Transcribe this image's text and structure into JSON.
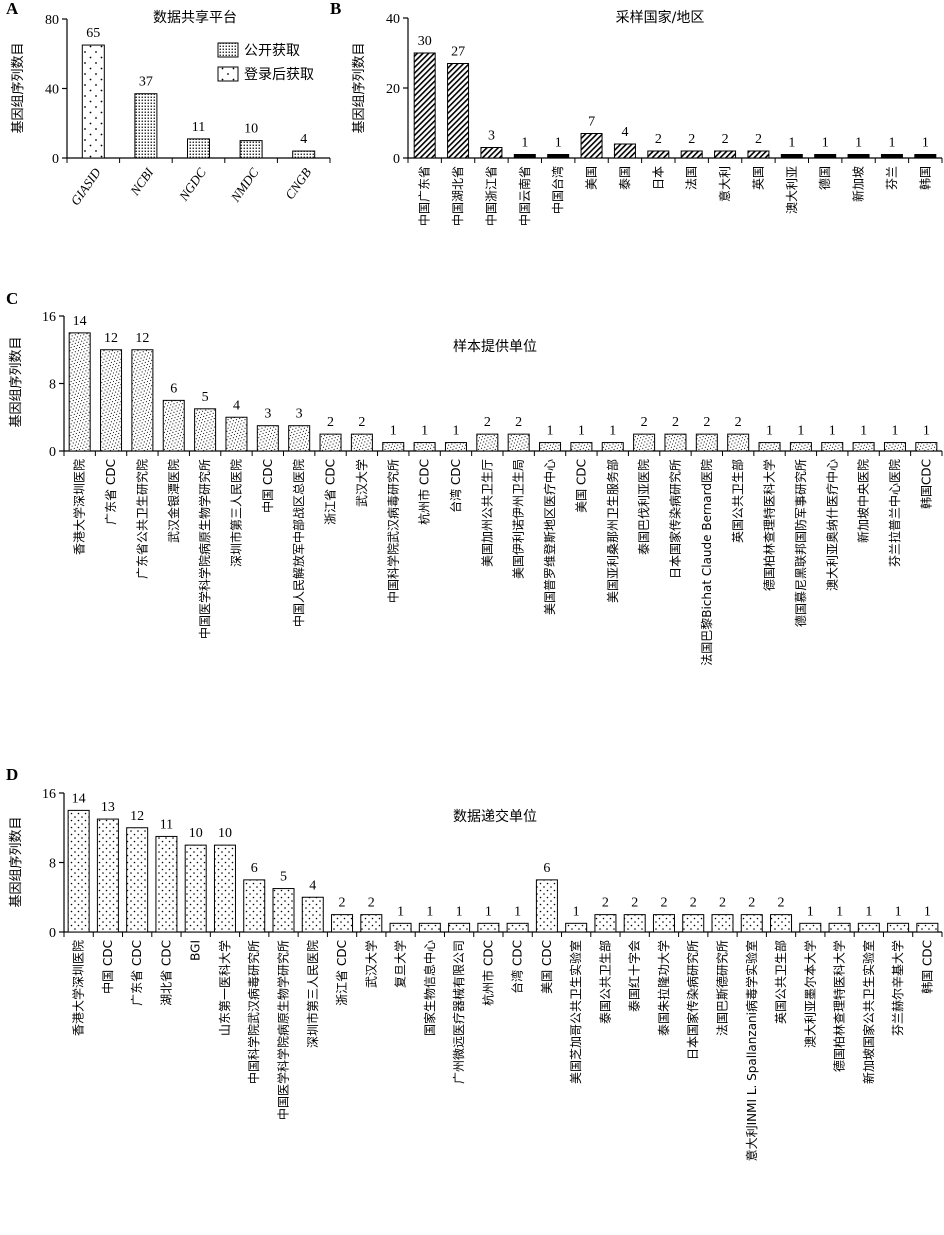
{
  "chart_data": [
    {
      "panel": "A",
      "type": "bar",
      "title": "数据共享平台",
      "ylabel": "基因组序列数目",
      "xlabel": "",
      "ylim": [
        0,
        80
      ],
      "yticks": [
        0,
        40,
        80
      ],
      "categories": [
        "GIASID",
        "NCBI",
        "NGDC",
        "NMDC",
        "CNGB"
      ],
      "values": [
        65,
        37,
        11,
        10,
        4
      ],
      "bar_patterns": [
        "dots-sparse",
        "dots-dense",
        "dots-dense",
        "dots-dense",
        "dots-dense"
      ],
      "legend": [
        {
          "label": "公开获取",
          "pattern": "dots-dense"
        },
        {
          "label": "登录后获取",
          "pattern": "dots-sparse"
        }
      ],
      "legend_position": "top-right",
      "grid": false
    },
    {
      "panel": "B",
      "type": "bar",
      "title": "采样国家/地区",
      "ylabel": "基因组序列数目",
      "xlabel": "",
      "ylim": [
        0,
        40
      ],
      "yticks": [
        0,
        20,
        40
      ],
      "categories": [
        "中国广东省",
        "中国湖北省",
        "中国浙江省",
        "中国云南省",
        "中国台湾",
        "美国",
        "泰国",
        "日本",
        "法国",
        "意大利",
        "英国",
        "澳大利亚",
        "德国",
        "新加坡",
        "芬兰",
        "韩国"
      ],
      "values": [
        30,
        27,
        3,
        1,
        1,
        7,
        4,
        2,
        2,
        2,
        2,
        1,
        1,
        1,
        1,
        1
      ],
      "grid": false
    },
    {
      "panel": "C",
      "type": "bar",
      "title": "样本提供单位",
      "ylabel": "基因组序列数目",
      "xlabel": "",
      "ylim": [
        0,
        16
      ],
      "yticks": [
        0,
        8,
        16
      ],
      "categories": [
        "香港大学深圳医院",
        "广东省 CDC",
        "广东省公共卫生研究院",
        "武汉金银潭医院",
        "中国医学科学院病原生物学研究所",
        "深圳市第三人民医院",
        "中国 CDC",
        "中国人民解放军中部战区总医院",
        "浙江省 CDC",
        "武汉大学",
        "中国科学院武汉病毒研究所",
        "杭州市 CDC",
        "台湾 CDC",
        "美国加州公共卫生厅",
        "美国伊利诺伊州卫生局",
        "美国普罗维登斯地区医疗中心",
        "美国 CDC",
        "美国亚利桑那州卫生服务部",
        "泰国巴伐利亚医院",
        "日本国家传染病研究所",
        "法国巴黎Bichat Claude Bernard医院",
        "英国公共卫生部",
        "德国柏林查理特医科大学",
        "德国慕尼黑联邦国防军事研究所",
        "澳大利亚奥纳什医疗中心",
        "新加坡中央医院",
        "芬兰拉普兰中心医院",
        "韩国CDC"
      ],
      "values": [
        14,
        12,
        12,
        6,
        5,
        4,
        3,
        3,
        2,
        2,
        1,
        1,
        1,
        2,
        2,
        1,
        1,
        1,
        2,
        2,
        2,
        2,
        1,
        1,
        1,
        1,
        1,
        1
      ],
      "grid": false
    },
    {
      "panel": "D",
      "type": "bar",
      "title": "数据递交单位",
      "ylabel": "基因组序列数目",
      "xlabel": "",
      "ylim": [
        0,
        16
      ],
      "yticks": [
        0,
        8,
        16
      ],
      "categories": [
        "香港大学深圳医院",
        "中国 CDC",
        "广东省 CDC",
        "湖北省 CDC",
        "BGI",
        "山东第一医科大学",
        "中国科学院武汉病毒研究所",
        "中国医学科学院病原生物学研究所",
        "深圳市第三人民医院",
        "浙江省 CDC",
        "武汉大学",
        "复旦大学",
        "国家生物信息中心",
        "广州微远医疗器械有限公司",
        "杭州市 CDC",
        "台湾 CDC",
        "美国 CDC",
        "美国芝加哥公共卫生实验室",
        "泰国公共卫生部",
        "泰国红十字会",
        "泰国朱拉隆功大学",
        "日本国家传染病研究所",
        "法国巴斯德研究所",
        "意大利INMI L. Spallanzani病毒学实验室",
        "英国公共卫生部",
        "澳大利亚墨尔本大学",
        "德国柏林查理特医科大学",
        "新加坡国家公共卫生实验室",
        "芬兰赫尔辛基大学",
        "韩国 CDC"
      ],
      "values": [
        14,
        13,
        12,
        11,
        10,
        10,
        6,
        5,
        4,
        2,
        2,
        1,
        1,
        1,
        1,
        1,
        6,
        1,
        2,
        2,
        2,
        2,
        2,
        2,
        2,
        1,
        1,
        1,
        1,
        1
      ],
      "grid": false
    }
  ],
  "panel_labels": [
    "A",
    "B",
    "C",
    "D"
  ]
}
